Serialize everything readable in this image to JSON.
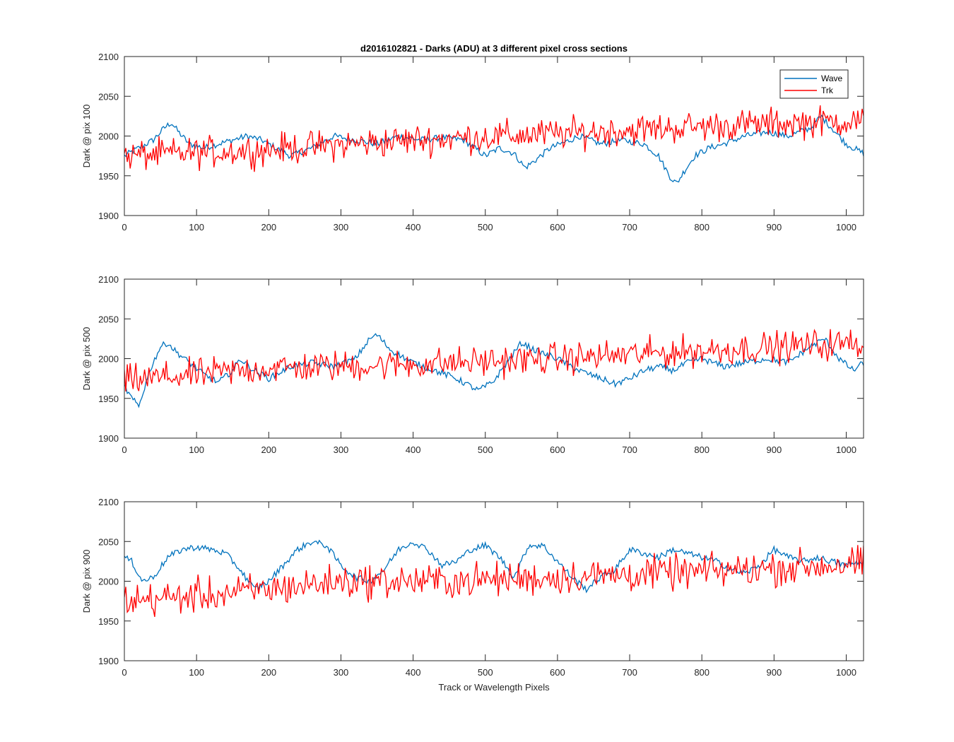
{
  "title": "d2016102821 - Darks (ADU) at 3 different pixel cross sections",
  "xlabel": "Track or Wavelength Pixels",
  "colors": {
    "wave": "#0072BD",
    "trk": "#FF0000",
    "axis": "#262626"
  },
  "chart_data": [
    {
      "type": "line",
      "ylabel": "Dark @ pix 100",
      "xlim": [
        0,
        1024
      ],
      "ylim": [
        1900,
        2100
      ],
      "xticks": [
        0,
        100,
        200,
        300,
        400,
        500,
        600,
        700,
        800,
        900,
        1000
      ],
      "yticks": [
        1900,
        1950,
        2000,
        2050,
        2100
      ],
      "legend": {
        "placement": "top-right",
        "entries": [
          "Wave",
          "Trk"
        ]
      },
      "series": [
        {
          "name": "Wave",
          "color": "#0072BD",
          "x": [
            0,
            20,
            40,
            55,
            65,
            75,
            90,
            110,
            130,
            150,
            170,
            190,
            210,
            230,
            260,
            290,
            320,
            350,
            380,
            410,
            440,
            470,
            500,
            520,
            540,
            555,
            570,
            590,
            610,
            630,
            660,
            690,
            720,
            740,
            755,
            765,
            775,
            790,
            810,
            830,
            860,
            890,
            920,
            950,
            965,
            980,
            1000,
            1024
          ],
          "y": [
            1975,
            1985,
            1995,
            2010,
            2017,
            2005,
            1990,
            1985,
            1990,
            1995,
            2000,
            1995,
            1985,
            1975,
            1985,
            2000,
            1995,
            1990,
            2000,
            1995,
            1998,
            1995,
            1975,
            1985,
            1978,
            1960,
            1970,
            1985,
            1992,
            2000,
            1990,
            1995,
            1990,
            1975,
            1950,
            1940,
            1955,
            1975,
            1985,
            1990,
            2000,
            2005,
            2000,
            2010,
            2025,
            2010,
            1990,
            1978
          ]
        },
        {
          "name": "Trk",
          "color": "#FF0000",
          "trend_x": [
            0,
            200,
            400,
            600,
            800,
            1024
          ],
          "trend_y": [
            1975,
            1983,
            1995,
            2003,
            2012,
            2020
          ],
          "noise_amplitude": 18
        }
      ]
    },
    {
      "type": "line",
      "ylabel": "Dark @ pix 500",
      "xlim": [
        0,
        1024
      ],
      "ylim": [
        1900,
        2100
      ],
      "xticks": [
        0,
        100,
        200,
        300,
        400,
        500,
        600,
        700,
        800,
        900,
        1000
      ],
      "yticks": [
        1900,
        1950,
        2000,
        2050,
        2100
      ],
      "series": [
        {
          "name": "Wave",
          "color": "#0072BD",
          "x": [
            0,
            10,
            20,
            35,
            50,
            60,
            70,
            90,
            110,
            130,
            150,
            160,
            180,
            200,
            230,
            260,
            290,
            320,
            340,
            350,
            370,
            400,
            430,
            460,
            490,
            510,
            530,
            550,
            570,
            600,
            630,
            660,
            680,
            700,
            720,
            740,
            760,
            780,
            800,
            830,
            860,
            890,
            920,
            950,
            970,
            990,
            1010,
            1024
          ],
          "y": [
            1965,
            1950,
            1940,
            1985,
            2015,
            2020,
            2010,
            1995,
            1980,
            1970,
            1985,
            2000,
            1985,
            1975,
            1990,
            1995,
            1990,
            2000,
            2025,
            2030,
            2010,
            1995,
            1985,
            1975,
            1960,
            1970,
            1995,
            2020,
            2010,
            2000,
            1985,
            1975,
            1968,
            1975,
            1985,
            1990,
            1985,
            1995,
            2000,
            1990,
            1995,
            2000,
            1995,
            2015,
            2025,
            2000,
            1985,
            1995
          ]
        },
        {
          "name": "Trk",
          "color": "#FF0000",
          "trend_x": [
            0,
            200,
            400,
            600,
            800,
            1024
          ],
          "trend_y": [
            1972,
            1988,
            1993,
            2000,
            2010,
            2020
          ],
          "noise_amplitude": 18
        }
      ]
    },
    {
      "type": "line",
      "ylabel": "Dark @ pix 900",
      "xlim": [
        0,
        1024
      ],
      "ylim": [
        1900,
        2100
      ],
      "xticks": [
        0,
        100,
        200,
        300,
        400,
        500,
        600,
        700,
        800,
        900,
        1000
      ],
      "yticks": [
        1900,
        1950,
        2000,
        2050,
        2100
      ],
      "series": [
        {
          "name": "Wave",
          "color": "#0072BD",
          "x": [
            0,
            10,
            25,
            40,
            60,
            80,
            100,
            120,
            140,
            160,
            180,
            200,
            220,
            240,
            260,
            280,
            300,
            320,
            340,
            360,
            380,
            400,
            420,
            440,
            460,
            480,
            500,
            520,
            540,
            560,
            580,
            600,
            620,
            640,
            660,
            680,
            700,
            720,
            740,
            760,
            780,
            800,
            820,
            840,
            860,
            880,
            900,
            920,
            940,
            960,
            980,
            1000,
            1024
          ],
          "y": [
            2030,
            2025,
            2000,
            2005,
            2030,
            2040,
            2043,
            2040,
            2035,
            2015,
            1990,
            2000,
            2020,
            2040,
            2050,
            2045,
            2020,
            2005,
            2000,
            2015,
            2040,
            2050,
            2040,
            2020,
            2025,
            2040,
            2045,
            2030,
            2005,
            2045,
            2045,
            2025,
            2005,
            1990,
            2005,
            2015,
            2040,
            2035,
            2030,
            2040,
            2035,
            2030,
            2025,
            2015,
            2010,
            2020,
            2040,
            2030,
            2025,
            2030,
            2025,
            2020,
            2025
          ]
        },
        {
          "name": "Trk",
          "color": "#FF0000",
          "trend_x": [
            0,
            150,
            300,
            450,
            600,
            800,
            1024
          ],
          "trend_y": [
            1975,
            1985,
            2000,
            2000,
            2005,
            2012,
            2022
          ],
          "noise_amplitude": 20
        }
      ]
    }
  ]
}
